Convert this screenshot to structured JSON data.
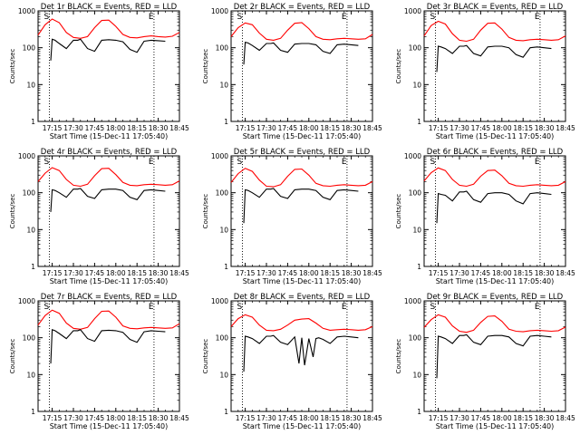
{
  "chart_data": [
    {
      "type": "line",
      "title": "Det 1r BLACK = Events, RED = LLD",
      "xlabel": "Start Time (15-Dec-11 17:05:40)",
      "ylabel": "Counts/sec",
      "xticks": [
        "17:15",
        "17:30",
        "17:45",
        "18:00",
        "18:15",
        "18:30",
        "18:45"
      ],
      "yticks": [
        "1",
        "10",
        "100",
        "1000"
      ],
      "ylim": [
        1,
        1000
      ],
      "yscale": "log",
      "markers": [
        "S",
        "E"
      ],
      "series": [
        {
          "name": "LLD",
          "color": "#ff0000",
          "x": [
            0,
            5,
            10,
            15,
            20,
            25,
            30,
            35,
            40,
            45,
            50,
            55,
            60,
            65,
            70,
            75,
            80,
            85,
            90,
            95,
            100
          ],
          "y": [
            220,
            420,
            600,
            480,
            260,
            190,
            180,
            200,
            350,
            550,
            560,
            380,
            230,
            190,
            185,
            200,
            210,
            200,
            195,
            205,
            260
          ]
        },
        {
          "name": "Events",
          "color": "#000000",
          "x": [
            9,
            10,
            12,
            15,
            20,
            25,
            28,
            30,
            35,
            40,
            45,
            50,
            55,
            60,
            65,
            70,
            75,
            80,
            85,
            90
          ],
          "y": [
            45,
            170,
            160,
            130,
            95,
            160,
            160,
            170,
            95,
            80,
            160,
            165,
            160,
            145,
            90,
            75,
            150,
            160,
            155,
            150
          ]
        }
      ]
    },
    {
      "type": "line",
      "title": "Det 2r BLACK = Events, RED = LLD",
      "xlabel": "Start Time (15-Dec-11 17:05:40)",
      "ylabel": "Counts/sec",
      "xticks": [
        "17:15",
        "17:30",
        "17:45",
        "18:00",
        "18:15",
        "18:30",
        "18:45"
      ],
      "yticks": [
        "1",
        "10",
        "100",
        "1000"
      ],
      "ylim": [
        1,
        1000
      ],
      "yscale": "log",
      "markers": [
        "S",
        "E"
      ],
      "series": [
        {
          "name": "LLD",
          "color": "#ff0000",
          "x": [
            0,
            5,
            10,
            15,
            20,
            25,
            30,
            35,
            40,
            45,
            50,
            55,
            60,
            65,
            70,
            75,
            80,
            85,
            90,
            95,
            100
          ],
          "y": [
            200,
            350,
            470,
            420,
            250,
            170,
            160,
            180,
            300,
            460,
            480,
            330,
            200,
            170,
            165,
            175,
            180,
            175,
            170,
            175,
            230
          ]
        },
        {
          "name": "Events",
          "color": "#000000",
          "x": [
            9,
            10,
            12,
            15,
            20,
            25,
            28,
            30,
            35,
            40,
            45,
            50,
            55,
            60,
            65,
            70,
            75,
            80,
            85,
            90
          ],
          "y": [
            35,
            140,
            135,
            115,
            85,
            130,
            130,
            135,
            85,
            75,
            125,
            130,
            130,
            120,
            80,
            70,
            120,
            125,
            120,
            115
          ]
        }
      ]
    },
    {
      "type": "line",
      "title": "Det 3r BLACK = Events, RED = LLD",
      "xlabel": "Start Time (15-Dec-11 17:05:40)",
      "ylabel": "Counts/sec",
      "xticks": [
        "17:15",
        "17:30",
        "17:45",
        "18:00",
        "18:15",
        "18:30",
        "18:45"
      ],
      "yticks": [
        "1",
        "10",
        "100",
        "1000"
      ],
      "ylim": [
        1,
        1000
      ],
      "yscale": "log",
      "markers": [
        "S",
        "E"
      ],
      "series": [
        {
          "name": "LLD",
          "color": "#ff0000",
          "x": [
            0,
            5,
            10,
            15,
            20,
            25,
            30,
            35,
            40,
            45,
            50,
            55,
            60,
            65,
            70,
            75,
            80,
            85,
            90,
            95,
            100
          ],
          "y": [
            210,
            400,
            520,
            440,
            240,
            160,
            150,
            170,
            300,
            460,
            470,
            320,
            190,
            160,
            155,
            165,
            170,
            165,
            160,
            165,
            210
          ]
        },
        {
          "name": "Events",
          "color": "#000000",
          "x": [
            9,
            10,
            12,
            15,
            20,
            25,
            28,
            30,
            35,
            40,
            45,
            50,
            55,
            60,
            65,
            70,
            75,
            80,
            85,
            90
          ],
          "y": [
            22,
            110,
            105,
            95,
            70,
            110,
            110,
            115,
            70,
            60,
            105,
            110,
            110,
            100,
            65,
            55,
            100,
            105,
            100,
            95
          ]
        }
      ]
    },
    {
      "type": "line",
      "title": "Det 4r BLACK = Events, RED = LLD",
      "xlabel": "Start Time (15-Dec-11 17:05:40)",
      "ylabel": "Counts/sec",
      "xticks": [
        "17:15",
        "17:30",
        "17:45",
        "18:00",
        "18:15",
        "18:30",
        "18:45"
      ],
      "yticks": [
        "1",
        "10",
        "100",
        "1000"
      ],
      "ylim": [
        1,
        1000
      ],
      "yscale": "log",
      "markers": [
        "S",
        "E"
      ],
      "series": [
        {
          "name": "LLD",
          "color": "#ff0000",
          "x": [
            0,
            5,
            10,
            15,
            20,
            25,
            30,
            35,
            40,
            45,
            50,
            55,
            60,
            65,
            70,
            75,
            80,
            85,
            90,
            95,
            100
          ],
          "y": [
            200,
            340,
            480,
            400,
            230,
            160,
            150,
            170,
            290,
            450,
            460,
            310,
            190,
            160,
            155,
            165,
            170,
            165,
            160,
            165,
            210
          ]
        },
        {
          "name": "Events",
          "color": "#000000",
          "x": [
            9,
            10,
            12,
            15,
            20,
            25,
            28,
            30,
            35,
            40,
            45,
            50,
            55,
            60,
            65,
            70,
            75,
            80,
            85,
            90
          ],
          "y": [
            30,
            120,
            115,
            100,
            75,
            125,
            125,
            130,
            80,
            70,
            120,
            125,
            125,
            115,
            75,
            65,
            115,
            120,
            115,
            110
          ]
        }
      ]
    },
    {
      "type": "line",
      "title": "Det 5r BLACK = Events, RED = LLD",
      "xlabel": "Start Time (15-Dec-11 17:05:40)",
      "ylabel": "Counts/sec",
      "xticks": [
        "17:15",
        "17:30",
        "17:45",
        "18:00",
        "18:15",
        "18:30",
        "18:45"
      ],
      "yticks": [
        "1",
        "10",
        "100",
        "1000"
      ],
      "ylim": [
        1,
        1000
      ],
      "yscale": "log",
      "markers": [
        "S",
        "E"
      ],
      "series": [
        {
          "name": "LLD",
          "color": "#ff0000",
          "x": [
            0,
            5,
            10,
            15,
            20,
            25,
            30,
            35,
            40,
            45,
            50,
            55,
            60,
            65,
            70,
            75,
            80,
            85,
            90,
            95,
            100
          ],
          "y": [
            190,
            330,
            460,
            380,
            220,
            150,
            145,
            165,
            280,
            430,
            440,
            300,
            180,
            155,
            150,
            160,
            165,
            160,
            155,
            160,
            200
          ]
        },
        {
          "name": "Events",
          "color": "#000000",
          "x": [
            9,
            10,
            12,
            15,
            20,
            25,
            28,
            30,
            35,
            40,
            45,
            50,
            55,
            60,
            65,
            70,
            75,
            80,
            85,
            90
          ],
          "y": [
            15,
            120,
            115,
            100,
            75,
            125,
            125,
            130,
            80,
            70,
            120,
            125,
            125,
            115,
            75,
            65,
            115,
            120,
            115,
            110
          ]
        }
      ]
    },
    {
      "type": "line",
      "title": "Det 6r BLACK = Events, RED = LLD",
      "xlabel": "Start Time (15-Dec-11 17:05:40)",
      "ylabel": "Counts/sec",
      "xticks": [
        "17:15",
        "17:30",
        "17:45",
        "18:00",
        "18:15",
        "18:30",
        "18:45"
      ],
      "yticks": [
        "1",
        "10",
        "100",
        "1000"
      ],
      "ylim": [
        1,
        1000
      ],
      "yscale": "log",
      "markers": [
        "S",
        "E"
      ],
      "series": [
        {
          "name": "LLD",
          "color": "#ff0000",
          "x": [
            0,
            5,
            10,
            15,
            20,
            25,
            30,
            35,
            40,
            45,
            50,
            55,
            60,
            65,
            70,
            75,
            80,
            85,
            90,
            95,
            100
          ],
          "y": [
            210,
            350,
            470,
            400,
            230,
            160,
            150,
            170,
            280,
            400,
            410,
            290,
            180,
            155,
            150,
            160,
            165,
            160,
            155,
            160,
            200
          ]
        },
        {
          "name": "Events",
          "color": "#000000",
          "x": [
            9,
            10,
            12,
            15,
            20,
            25,
            28,
            30,
            35,
            40,
            45,
            50,
            55,
            60,
            65,
            70,
            75,
            80,
            85,
            90
          ],
          "y": [
            15,
            95,
            90,
            85,
            60,
            105,
            105,
            110,
            65,
            55,
            95,
            100,
            100,
            90,
            60,
            50,
            95,
            100,
            95,
            90
          ]
        }
      ]
    },
    {
      "type": "line",
      "title": "Det 7r BLACK = Events, RED = LLD",
      "xlabel": "Start Time (15-Dec-11 17:05:40)",
      "ylabel": "Counts/sec",
      "xticks": [
        "17:15",
        "17:30",
        "17:45",
        "18:00",
        "18:15",
        "18:30",
        "18:45"
      ],
      "yticks": [
        "1",
        "10",
        "100",
        "1000"
      ],
      "ylim": [
        1,
        1000
      ],
      "yscale": "log",
      "markers": [
        "S",
        "E"
      ],
      "series": [
        {
          "name": "LLD",
          "color": "#ff0000",
          "x": [
            0,
            5,
            10,
            15,
            20,
            25,
            30,
            35,
            40,
            45,
            50,
            55,
            60,
            65,
            70,
            75,
            80,
            85,
            90,
            95,
            100
          ],
          "y": [
            220,
            400,
            560,
            460,
            250,
            180,
            170,
            190,
            330,
            520,
            530,
            360,
            210,
            180,
            175,
            185,
            190,
            185,
            180,
            185,
            240
          ]
        },
        {
          "name": "Events",
          "color": "#000000",
          "x": [
            9,
            10,
            12,
            15,
            20,
            25,
            28,
            30,
            35,
            40,
            45,
            50,
            55,
            60,
            65,
            70,
            75,
            80,
            85,
            90
          ],
          "y": [
            20,
            165,
            155,
            130,
            95,
            155,
            155,
            165,
            95,
            80,
            155,
            160,
            155,
            140,
            90,
            75,
            145,
            155,
            150,
            145
          ]
        }
      ]
    },
    {
      "type": "line",
      "title": "Det 8r BLACK = Events, RED = LLD",
      "xlabel": "Start Time (15-Dec-11 17:05:40)",
      "ylabel": "Counts/sec",
      "xticks": [
        "17:15",
        "17:30",
        "17:45",
        "18:00",
        "18:15",
        "18:30",
        "18:45"
      ],
      "yticks": [
        "1",
        "10",
        "100",
        "1000"
      ],
      "ylim": [
        1,
        1000
      ],
      "yscale": "log",
      "markers": [
        "S",
        "E"
      ],
      "series": [
        {
          "name": "LLD",
          "color": "#ff0000",
          "x": [
            0,
            5,
            10,
            15,
            20,
            25,
            30,
            35,
            40,
            45,
            50,
            55,
            60,
            65,
            70,
            75,
            80,
            85,
            90,
            95,
            100
          ],
          "y": [
            200,
            330,
            420,
            360,
            220,
            160,
            155,
            170,
            220,
            300,
            320,
            330,
            250,
            180,
            160,
            165,
            170,
            165,
            160,
            165,
            200
          ]
        },
        {
          "name": "Events",
          "color": "#000000",
          "x": [
            9,
            10,
            12,
            15,
            20,
            25,
            28,
            30,
            35,
            40,
            45,
            48,
            50,
            52,
            55,
            58,
            60,
            62,
            65,
            70,
            75,
            80,
            85,
            90
          ],
          "y": [
            12,
            110,
            105,
            95,
            70,
            110,
            110,
            115,
            75,
            65,
            105,
            20,
            100,
            18,
            95,
            30,
            95,
            100,
            90,
            70,
            105,
            110,
            105,
            100
          ]
        }
      ]
    },
    {
      "type": "line",
      "title": "Det 9r BLACK = Events, RED = LLD",
      "xlabel": "Start Time (15-Dec-11 17:05:40)",
      "ylabel": "Counts/sec",
      "xticks": [
        "17:15",
        "17:30",
        "17:45",
        "18:00",
        "18:15",
        "18:30",
        "18:45"
      ],
      "yticks": [
        "1",
        "10",
        "100",
        "1000"
      ],
      "ylim": [
        1,
        1000
      ],
      "yscale": "log",
      "markers": [
        "S",
        "E"
      ],
      "series": [
        {
          "name": "LLD",
          "color": "#ff0000",
          "x": [
            0,
            5,
            10,
            15,
            20,
            25,
            30,
            35,
            40,
            45,
            50,
            55,
            60,
            65,
            70,
            75,
            80,
            85,
            90,
            95,
            100
          ],
          "y": [
            190,
            310,
            420,
            360,
            210,
            150,
            140,
            160,
            260,
            380,
            390,
            280,
            170,
            150,
            145,
            155,
            160,
            155,
            150,
            155,
            195
          ]
        },
        {
          "name": "Events",
          "color": "#000000",
          "x": [
            9,
            10,
            12,
            15,
            20,
            25,
            28,
            30,
            35,
            40,
            45,
            50,
            55,
            60,
            65,
            70,
            75,
            80,
            85,
            90
          ],
          "y": [
            8,
            110,
            105,
            95,
            70,
            115,
            115,
            120,
            75,
            65,
            110,
            115,
            115,
            105,
            70,
            60,
            110,
            115,
            110,
            105
          ]
        }
      ]
    }
  ]
}
